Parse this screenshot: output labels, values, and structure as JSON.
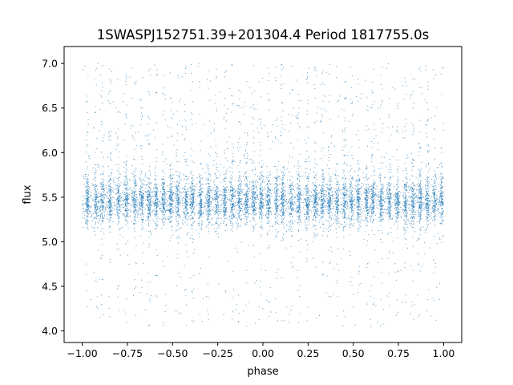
{
  "chart_data": {
    "type": "scatter",
    "title": "1SWASPJ152751.39+201304.4 Period 1817755.0s",
    "xlabel": "phase",
    "ylabel": "flux",
    "xlim": [
      -1.1,
      1.1
    ],
    "ylim": [
      3.87,
      7.19
    ],
    "xticks": [
      -1.0,
      -0.75,
      -0.5,
      -0.25,
      0.0,
      0.25,
      0.5,
      0.75,
      1.0
    ],
    "xtick_labels": [
      "−1.00",
      "−0.75",
      "−0.50",
      "−0.25",
      "0.00",
      "0.25",
      "0.50",
      "0.75",
      "1.00"
    ],
    "yticks": [
      4.0,
      4.5,
      5.0,
      5.5,
      6.0,
      6.5,
      7.0
    ],
    "ytick_labels": [
      "4.0",
      "4.5",
      "5.0",
      "5.5",
      "6.0",
      "6.5",
      "7.0"
    ],
    "grid": false,
    "point_color": "#1f77b4",
    "series": [
      {
        "phase_range": [
          -1.0,
          1.0
        ],
        "baseline_flux": 5.45,
        "core_flux_range": [
          5.15,
          5.75
        ],
        "flux_extent": [
          4.05,
          7.0
        ],
        "approx_points": 9000,
        "band_centers_half_period": [
          0.03,
          0.075,
          0.11,
          0.155,
          0.2,
          0.245,
          0.29,
          0.33,
          0.37,
          0.41,
          0.45,
          0.49
        ]
      }
    ]
  }
}
